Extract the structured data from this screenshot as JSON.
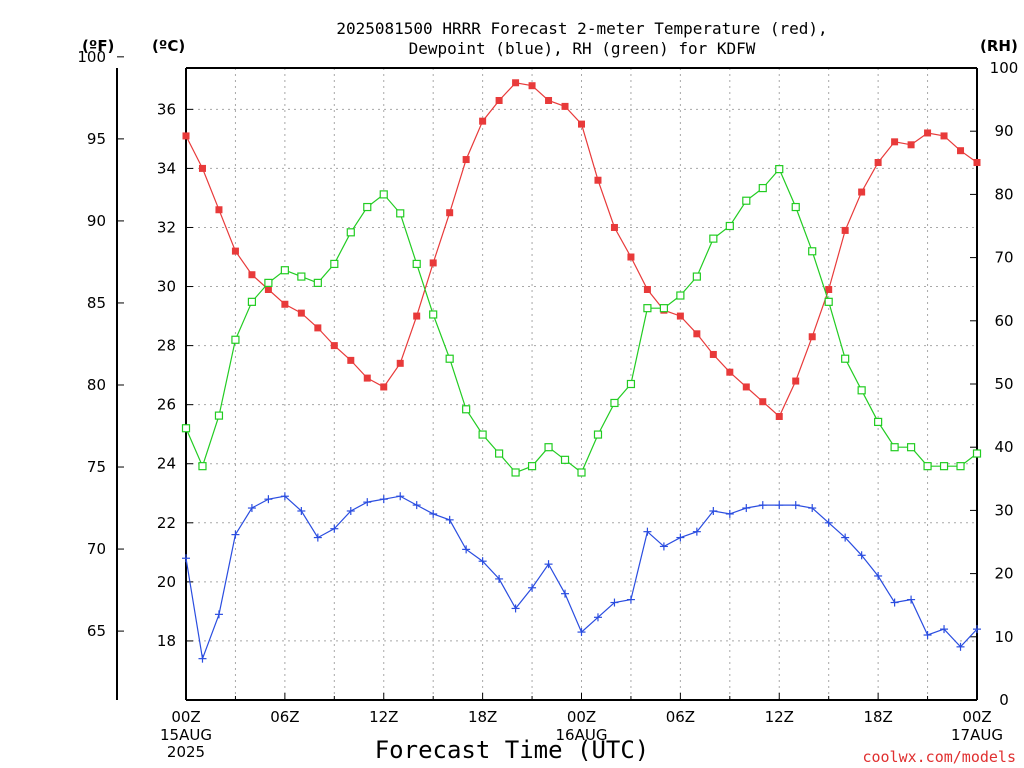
{
  "chart_data": {
    "type": "line",
    "title_line1": "2025081500 HRRR Forecast 2-meter Temperature (red),",
    "title_line2": "Dewpoint (blue), RH (green) for KDFW",
    "xlabel": "Forecast Time (UTC)",
    "credit": "coolwx.com/models",
    "units": {
      "fahrenheit": "(ºF)",
      "celsius": "(ºC)",
      "rh": "(RH)"
    },
    "x_range_hours": [
      0,
      48
    ],
    "x_ticks": [
      {
        "hour": 0,
        "l1": "00Z",
        "l2": "15AUG",
        "l3": "2025"
      },
      {
        "hour": 6,
        "l1": "06Z",
        "l2": "",
        "l3": ""
      },
      {
        "hour": 12,
        "l1": "12Z",
        "l2": "",
        "l3": ""
      },
      {
        "hour": 18,
        "l1": "18Z",
        "l2": "",
        "l3": ""
      },
      {
        "hour": 24,
        "l1": "00Z",
        "l2": "16AUG",
        "l3": ""
      },
      {
        "hour": 30,
        "l1": "06Z",
        "l2": "",
        "l3": ""
      },
      {
        "hour": 36,
        "l1": "12Z",
        "l2": "",
        "l3": ""
      },
      {
        "hour": 42,
        "l1": "18Z",
        "l2": "",
        "l3": ""
      },
      {
        "hour": 48,
        "l1": "00Z",
        "l2": "17AUG",
        "l3": ""
      }
    ],
    "celsius_axis": {
      "ylim": [
        16.0,
        37.4
      ],
      "ticks": [
        18,
        20,
        22,
        24,
        26,
        28,
        30,
        32,
        34,
        36
      ]
    },
    "fahrenheit_axis": {
      "ticks": [
        65,
        70,
        75,
        80,
        85,
        90,
        95,
        100
      ]
    },
    "rh_axis": {
      "ylim": [
        0,
        100
      ],
      "ticks": [
        0,
        10,
        20,
        30,
        40,
        50,
        60,
        70,
        80,
        90,
        100
      ]
    },
    "series": [
      {
        "name": "Temperature",
        "color": "#e83a3a",
        "marker": "filled-square",
        "axis": "celsius",
        "values": [
          35.1,
          34.0,
          32.6,
          31.2,
          30.4,
          29.9,
          29.4,
          29.1,
          28.6,
          28.0,
          27.5,
          26.9,
          26.6,
          27.4,
          29.0,
          30.8,
          32.5,
          34.3,
          35.6,
          36.3,
          36.9,
          36.8,
          36.3,
          36.1,
          35.5,
          33.6,
          32.0,
          31.0,
          29.9,
          29.2,
          29.0,
          28.4,
          27.7,
          27.1,
          26.6,
          26.1,
          25.6,
          26.8,
          28.3,
          29.9,
          31.9,
          33.2,
          34.2,
          34.9,
          34.8,
          35.2,
          35.1,
          34.6,
          34.2
        ]
      },
      {
        "name": "Dewpoint",
        "color": "#2a4de0",
        "marker": "plus",
        "axis": "celsius",
        "values": [
          20.8,
          17.4,
          18.9,
          21.6,
          22.5,
          22.8,
          22.9,
          22.4,
          21.5,
          21.8,
          22.4,
          22.7,
          22.8,
          22.9,
          22.6,
          22.3,
          22.1,
          21.1,
          20.7,
          20.1,
          19.1,
          19.8,
          20.6,
          19.6,
          18.3,
          18.8,
          19.3,
          19.4,
          21.7,
          21.2,
          21.5,
          21.7,
          22.4,
          22.3,
          22.5,
          22.6,
          22.6,
          22.6,
          22.5,
          22.0,
          21.5,
          20.9,
          20.2,
          19.3,
          19.4,
          18.2,
          18.4,
          17.8,
          18.4
        ]
      },
      {
        "name": "RH",
        "color": "#22cc22",
        "marker": "open-square",
        "axis": "rh",
        "values": [
          43,
          37,
          45,
          57,
          63,
          66,
          68,
          67,
          66,
          69,
          74,
          78,
          80,
          77,
          69,
          61,
          54,
          46,
          42,
          39,
          36,
          37,
          40,
          38,
          36,
          42,
          47,
          50,
          62,
          62,
          64,
          67,
          73,
          75,
          79,
          81,
          84,
          78,
          71,
          63,
          54,
          49,
          44,
          40,
          40,
          37,
          37,
          37,
          39
        ]
      }
    ]
  }
}
